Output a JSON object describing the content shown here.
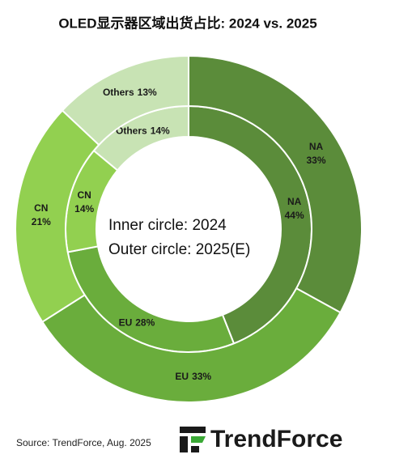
{
  "chart_data": {
    "type": "donut",
    "title": "OLED显示器区域出货占比: 2024 vs. 2025",
    "categories": [
      "NA",
      "EU",
      "CN",
      "Others"
    ],
    "colors": [
      "#5b8c3a",
      "#6aad3c",
      "#92d050",
      "#c8e3b4"
    ],
    "series": [
      {
        "values": [
          44,
          28,
          14,
          14
        ],
        "value_labels": [
          "44%",
          "28%",
          "14%",
          "14%"
        ]
      },
      {
        "values": [
          33,
          33,
          21,
          13
        ],
        "value_labels": [
          "33%",
          "33%",
          "21%",
          "13%"
        ]
      }
    ],
    "annotations": [
      "Inner circle: 2024",
      "Outer circle: 2025(E)"
    ],
    "source": "Source: TrendForce, Aug. 2025",
    "logo": "TrendForce"
  }
}
